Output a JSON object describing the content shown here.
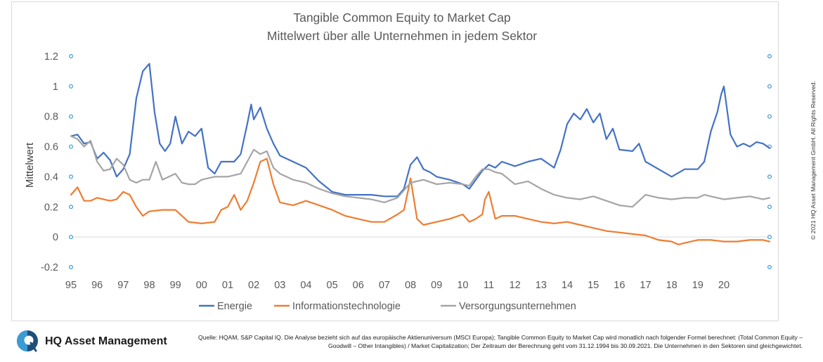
{
  "chart_data": {
    "type": "line",
    "title": "Tangible Common Equity to Market Cap",
    "subtitle": "Mittelwert über alle Unternehmen in jedem Sektor",
    "xlabel": "",
    "ylabel": "Mittelwert",
    "ylim": [
      -0.2,
      1.2
    ],
    "yticks": [
      "-0.2",
      "0",
      "0.2",
      "0.4",
      "0.6",
      "0.8",
      "1",
      "1.2"
    ],
    "xlim": [
      1995.0,
      2021.75
    ],
    "xticks": [
      "95",
      "96",
      "97",
      "98",
      "99",
      "00",
      "01",
      "02",
      "03",
      "04",
      "05",
      "06",
      "07",
      "08",
      "09",
      "10",
      "11",
      "12",
      "13",
      "14",
      "15",
      "16",
      "17",
      "18",
      "19",
      "20"
    ],
    "grid": false,
    "legend_position": "bottom",
    "series": [
      {
        "name": "Energie",
        "color": "#4472c4",
        "x": [
          1995.0,
          1995.25,
          1995.5,
          1995.75,
          1996.0,
          1996.25,
          1996.5,
          1996.75,
          1997.0,
          1997.25,
          1997.5,
          1997.75,
          1998.0,
          1998.2,
          1998.4,
          1998.6,
          1998.8,
          1999.0,
          1999.25,
          1999.5,
          1999.75,
          2000.0,
          2000.25,
          2000.5,
          2000.75,
          2001.0,
          2001.25,
          2001.5,
          2001.75,
          2001.9,
          2002.0,
          2002.25,
          2002.5,
          2002.75,
          2003.0,
          2003.5,
          2004.0,
          2004.5,
          2005.0,
          2005.5,
          2006.0,
          2006.5,
          2007.0,
          2007.5,
          2007.75,
          2008.0,
          2008.25,
          2008.5,
          2008.75,
          2009.0,
          2009.5,
          2010.0,
          2010.25,
          2010.5,
          2010.75,
          2011.0,
          2011.25,
          2011.5,
          2012.0,
          2012.5,
          2013.0,
          2013.5,
          2013.75,
          2014.0,
          2014.25,
          2014.5,
          2014.75,
          2015.0,
          2015.25,
          2015.5,
          2015.75,
          2016.0,
          2016.5,
          2016.75,
          2017.0,
          2017.5,
          2018.0,
          2018.5,
          2019.0,
          2019.25,
          2019.5,
          2019.75,
          2019.9,
          2020.0,
          2020.25,
          2020.5,
          2020.75,
          2021.0,
          2021.25,
          2021.5,
          2021.75
        ],
        "y": [
          0.67,
          0.68,
          0.62,
          0.63,
          0.52,
          0.56,
          0.51,
          0.4,
          0.45,
          0.55,
          0.92,
          1.1,
          1.15,
          0.83,
          0.62,
          0.57,
          0.62,
          0.8,
          0.62,
          0.7,
          0.67,
          0.72,
          0.46,
          0.42,
          0.5,
          0.5,
          0.5,
          0.55,
          0.75,
          0.88,
          0.78,
          0.86,
          0.72,
          0.62,
          0.54,
          0.5,
          0.46,
          0.37,
          0.3,
          0.28,
          0.28,
          0.28,
          0.27,
          0.27,
          0.32,
          0.48,
          0.53,
          0.45,
          0.43,
          0.4,
          0.38,
          0.35,
          0.32,
          0.38,
          0.44,
          0.48,
          0.46,
          0.5,
          0.47,
          0.5,
          0.52,
          0.46,
          0.58,
          0.75,
          0.82,
          0.78,
          0.85,
          0.76,
          0.82,
          0.65,
          0.72,
          0.58,
          0.57,
          0.62,
          0.5,
          0.45,
          0.4,
          0.45,
          0.45,
          0.5,
          0.7,
          0.83,
          0.95,
          1.0,
          0.68,
          0.6,
          0.62,
          0.6,
          0.63,
          0.62,
          0.59
        ]
      },
      {
        "name": "Informationstechnologie",
        "color": "#ed7d31",
        "x": [
          1995.0,
          1995.25,
          1995.5,
          1995.75,
          1996.0,
          1996.25,
          1996.5,
          1996.75,
          1997.0,
          1997.25,
          1997.5,
          1997.75,
          1998.0,
          1998.5,
          1999.0,
          1999.5,
          2000.0,
          2000.5,
          2000.75,
          2001.0,
          2001.25,
          2001.5,
          2001.75,
          2002.0,
          2002.25,
          2002.5,
          2002.75,
          2003.0,
          2003.5,
          2004.0,
          2004.5,
          2005.0,
          2005.5,
          2006.0,
          2006.5,
          2007.0,
          2007.5,
          2007.75,
          2007.9,
          2008.0,
          2008.25,
          2008.5,
          2009.0,
          2009.5,
          2010.0,
          2010.25,
          2010.5,
          2010.75,
          2010.85,
          2011.0,
          2011.25,
          2011.5,
          2012.0,
          2012.5,
          2013.0,
          2013.5,
          2014.0,
          2014.5,
          2015.0,
          2015.5,
          2016.0,
          2016.5,
          2017.0,
          2017.5,
          2018.0,
          2018.25,
          2018.5,
          2019.0,
          2019.5,
          2020.0,
          2020.5,
          2021.0,
          2021.5,
          2021.75
        ],
        "y": [
          0.28,
          0.33,
          0.24,
          0.24,
          0.26,
          0.25,
          0.24,
          0.25,
          0.3,
          0.28,
          0.2,
          0.14,
          0.17,
          0.18,
          0.18,
          0.1,
          0.09,
          0.1,
          0.18,
          0.2,
          0.28,
          0.18,
          0.24,
          0.36,
          0.5,
          0.52,
          0.35,
          0.23,
          0.21,
          0.24,
          0.21,
          0.18,
          0.14,
          0.12,
          0.1,
          0.1,
          0.15,
          0.18,
          0.3,
          0.39,
          0.12,
          0.08,
          0.1,
          0.12,
          0.15,
          0.1,
          0.12,
          0.15,
          0.25,
          0.3,
          0.12,
          0.14,
          0.14,
          0.12,
          0.1,
          0.09,
          0.1,
          0.08,
          0.06,
          0.04,
          0.03,
          0.02,
          0.01,
          -0.02,
          -0.03,
          -0.05,
          -0.04,
          -0.02,
          -0.02,
          -0.03,
          -0.03,
          -0.02,
          -0.02,
          -0.03
        ]
      },
      {
        "name": "Versorgungsunternehmen",
        "color": "#a5a5a5",
        "x": [
          1995.0,
          1995.25,
          1995.5,
          1995.75,
          1996.0,
          1996.25,
          1996.5,
          1996.75,
          1997.0,
          1997.25,
          1997.5,
          1997.75,
          1998.0,
          1998.25,
          1998.5,
          1998.75,
          1999.0,
          1999.25,
          1999.5,
          1999.75,
          2000.0,
          2000.5,
          2001.0,
          2001.5,
          2001.75,
          2002.0,
          2002.25,
          2002.5,
          2002.75,
          2003.0,
          2003.5,
          2004.0,
          2004.5,
          2005.0,
          2005.5,
          2006.0,
          2006.5,
          2007.0,
          2007.5,
          2008.0,
          2008.5,
          2009.0,
          2009.5,
          2010.0,
          2010.25,
          2010.5,
          2010.75,
          2011.0,
          2011.25,
          2011.5,
          2012.0,
          2012.5,
          2013.0,
          2013.5,
          2014.0,
          2014.5,
          2015.0,
          2015.5,
          2016.0,
          2016.5,
          2017.0,
          2017.5,
          2018.0,
          2018.5,
          2019.0,
          2019.25,
          2019.5,
          2020.0,
          2020.5,
          2021.0,
          2021.5,
          2021.75
        ],
        "y": [
          0.67,
          0.65,
          0.6,
          0.64,
          0.5,
          0.44,
          0.45,
          0.52,
          0.48,
          0.38,
          0.36,
          0.38,
          0.38,
          0.5,
          0.38,
          0.4,
          0.42,
          0.36,
          0.35,
          0.35,
          0.38,
          0.4,
          0.4,
          0.42,
          0.5,
          0.58,
          0.55,
          0.57,
          0.46,
          0.42,
          0.38,
          0.36,
          0.32,
          0.29,
          0.27,
          0.26,
          0.25,
          0.23,
          0.26,
          0.36,
          0.38,
          0.35,
          0.36,
          0.35,
          0.34,
          0.4,
          0.45,
          0.45,
          0.43,
          0.42,
          0.35,
          0.37,
          0.32,
          0.28,
          0.26,
          0.25,
          0.27,
          0.24,
          0.21,
          0.2,
          0.28,
          0.26,
          0.25,
          0.26,
          0.26,
          0.28,
          0.27,
          0.25,
          0.26,
          0.27,
          0.25,
          0.26
        ]
      }
    ]
  },
  "copyright": "© 2021 HQ Asset Management GmbH. All Rights Reserved.",
  "company": "HQ Asset Management",
  "source_note": "Quelle: HQAM, S&P Capital IQ. Die Analyse bezieht sich auf das europäische Aktienuniversum (MSCI Europa); Tangible Common Equity to Market Cap wird monatlich nach folgender Formel berechnet: (Total Common Equity – Goodwill – Other Intangibles) / Market Capitalization; Der Zeitraum der Berechnung geht vom 31.12.1994 bis 30.09.2021. Die Unternehmen in den Sektoren sind gleichgewichtet."
}
